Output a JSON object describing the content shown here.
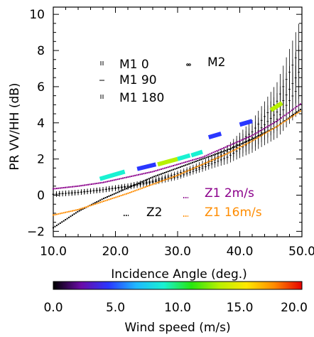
{
  "chart_data": {
    "type": "scatter",
    "xlabel": "Incidence Angle (deg.)",
    "ylabel": "PR VV/HH (dB)",
    "xlim": [
      10,
      50
    ],
    "ylim": [
      -2.3,
      10.4
    ],
    "xticks": [
      "10.0",
      "20.0",
      "30.0",
      "40.0",
      "50.0"
    ],
    "yticks": [
      "−2",
      "0",
      "2",
      "4",
      "6",
      "8",
      "10"
    ],
    "xtick_values": [
      10,
      20,
      30,
      40,
      50
    ],
    "ytick_values": [
      -2,
      0,
      2,
      4,
      6,
      8,
      10
    ],
    "legend": {
      "m1_0": "M1 0",
      "m1_90": "M1 90",
      "m1_180": "M1 180",
      "m2": "M2",
      "z2": "Z2",
      "z1_2": "Z1 2m/s",
      "z1_16": "Z1 16m/s"
    },
    "series": [
      {
        "name": "M1 0",
        "kind": "errorbar",
        "color": "#000000",
        "points": [
          [
            10,
            0.05
          ],
          [
            14,
            0.15
          ],
          [
            18,
            0.3
          ],
          [
            22,
            0.5
          ],
          [
            26,
            0.8
          ],
          [
            30,
            1.2
          ],
          [
            34,
            1.7
          ],
          [
            38,
            2.4
          ],
          [
            42,
            3.5
          ],
          [
            46,
            5.2
          ],
          [
            49.5,
            8.0
          ]
        ]
      },
      {
        "name": "M1 90",
        "kind": "errorbar",
        "color": "#000000",
        "points": [
          [
            10,
            0.05
          ],
          [
            14,
            0.15
          ],
          [
            18,
            0.3
          ],
          [
            22,
            0.5
          ],
          [
            26,
            0.75
          ],
          [
            30,
            1.1
          ],
          [
            34,
            1.6
          ],
          [
            38,
            2.3
          ],
          [
            42,
            3.2
          ],
          [
            46,
            4.6
          ],
          [
            49.5,
            6.8
          ]
        ]
      },
      {
        "name": "M1 180",
        "kind": "errorbar",
        "color": "#000000",
        "points": [
          [
            10,
            0.05
          ],
          [
            14,
            0.15
          ],
          [
            18,
            0.3
          ],
          [
            22,
            0.45
          ],
          [
            26,
            0.7
          ],
          [
            30,
            1.0
          ],
          [
            34,
            1.5
          ],
          [
            38,
            2.1
          ],
          [
            42,
            3.0
          ],
          [
            46,
            4.2
          ],
          [
            49.5,
            6.0
          ]
        ]
      },
      {
        "name": "Z2",
        "kind": "dotted",
        "color": "#000000",
        "points": [
          [
            10,
            -1.8
          ],
          [
            14,
            -0.9
          ],
          [
            18,
            -0.2
          ],
          [
            22,
            0.4
          ],
          [
            26,
            1.0
          ],
          [
            30,
            1.5
          ],
          [
            34,
            2.0
          ],
          [
            38,
            2.5
          ],
          [
            42,
            3.1
          ],
          [
            46,
            3.8
          ],
          [
            50,
            4.8
          ]
        ]
      },
      {
        "name": "Z1 2m/s",
        "kind": "dotted",
        "color": "#8b008b",
        "points": [
          [
            10,
            0.35
          ],
          [
            14,
            0.5
          ],
          [
            18,
            0.7
          ],
          [
            22,
            1.0
          ],
          [
            26,
            1.3
          ],
          [
            30,
            1.7
          ],
          [
            34,
            2.1
          ],
          [
            38,
            2.7
          ],
          [
            42,
            3.3
          ],
          [
            46,
            4.1
          ],
          [
            50,
            5.1
          ]
        ]
      },
      {
        "name": "Z1 16m/s",
        "kind": "dotted",
        "color": "#ff8c00",
        "points": [
          [
            10,
            -1.1
          ],
          [
            14,
            -0.8
          ],
          [
            18,
            -0.35
          ],
          [
            22,
            0.1
          ],
          [
            26,
            0.6
          ],
          [
            30,
            1.1
          ],
          [
            34,
            1.7
          ],
          [
            38,
            2.3
          ],
          [
            42,
            3.0
          ],
          [
            46,
            3.8
          ],
          [
            50,
            4.7
          ]
        ]
      },
      {
        "name": "M2",
        "kind": "segments",
        "colormap": "wind",
        "segments": [
          {
            "x": [
              17.5,
              21.5
            ],
            "y": [
              0.9,
              1.3
            ],
            "wind": 8.5
          },
          {
            "x": [
              23.5,
              26.5
            ],
            "y": [
              1.45,
              1.7
            ],
            "wind": 3.5
          },
          {
            "x": [
              26.8,
              30.0
            ],
            "y": [
              1.7,
              2.0
            ],
            "wind": 12.5
          },
          {
            "x": [
              30.0,
              32.0
            ],
            "y": [
              2.0,
              2.2
            ],
            "wind": 9.0
          },
          {
            "x": [
              32.2,
              34.0
            ],
            "y": [
              2.2,
              2.4
            ],
            "wind": 8.0
          },
          {
            "x": [
              35.0,
              37.0
            ],
            "y": [
              3.2,
              3.4
            ],
            "wind": 4.0
          },
          {
            "x": [
              40.0,
              42.0
            ],
            "y": [
              3.9,
              4.1
            ],
            "wind": 4.5
          },
          {
            "x": [
              45.0,
              46.8
            ],
            "y": [
              4.7,
              5.1
            ],
            "wind": 13.0
          }
        ]
      }
    ],
    "colorbar": {
      "label": "Wind speed (m/s)",
      "range": [
        0,
        20
      ],
      "ticks": [
        "0.0",
        "5.0",
        "10.0",
        "15.0",
        "20.0"
      ],
      "tick_values": [
        0,
        5,
        10,
        15,
        20
      ],
      "colors": [
        "#000000",
        "#6a0aa6",
        "#2a37ff",
        "#1fb8ff",
        "#19f2d2",
        "#26e60f",
        "#b7f000",
        "#ffe800",
        "#ff8a00",
        "#e60000"
      ]
    },
    "grid": false
  }
}
